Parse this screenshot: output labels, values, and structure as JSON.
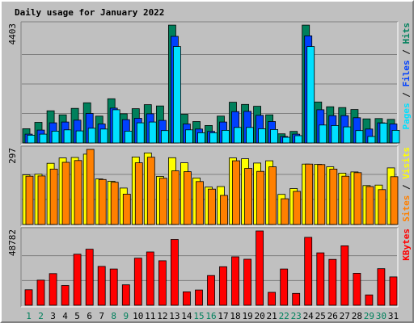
{
  "chart_data": {
    "title": "Daily usage for January 2022",
    "days": [
      "1",
      "2",
      "3",
      "4",
      "5",
      "6",
      "7",
      "8",
      "9",
      "10",
      "11",
      "12",
      "13",
      "14",
      "15",
      "16",
      "17",
      "18",
      "19",
      "20",
      "21",
      "22",
      "23",
      "24",
      "25",
      "26",
      "27",
      "28",
      "29",
      "30",
      "31"
    ],
    "weekend_days": [
      "1",
      "2",
      "8",
      "9",
      "15",
      "16",
      "22",
      "23",
      "29",
      "30"
    ],
    "colors": {
      "hits": "#00805c",
      "files": "#0040ff",
      "pages": "#00e0ff",
      "visits": "#ffff00",
      "sites": "#ff8000",
      "kbytes": "#ff0000",
      "title": "#0000ff",
      "weekday_label": "#000000",
      "weekend_label": "#00805c",
      "background": "#c0c0c0",
      "plot_background": "#c0c0c0"
    },
    "panels": [
      {
        "type": "bar",
        "max_label": "4403",
        "ymax": 4403,
        "legend": [
          {
            "text": "Pages",
            "color": "#00e0ff"
          },
          {
            "text": " / ",
            "color": "#000000"
          },
          {
            "text": "Files",
            "color": "#0040ff"
          },
          {
            "text": " / ",
            "color": "#000000"
          },
          {
            "text": "Hits",
            "color": "#00805c"
          }
        ],
        "series": [
          {
            "name": "Hits",
            "color": "#00805c",
            "values": [
              530,
              770,
              1200,
              1050,
              1290,
              1500,
              1000,
              1650,
              1090,
              1280,
              1430,
              1380,
              4400,
              1070,
              800,
              650,
              1000,
              1520,
              1440,
              1370,
              1050,
              340,
              430,
              4400,
              1530,
              1350,
              1320,
              1250,
              900,
              910,
              880
            ]
          },
          {
            "name": "Files",
            "color": "#0040ff",
            "values": [
              330,
              480,
              750,
              780,
              850,
              1100,
              710,
              1300,
              870,
              920,
              1090,
              840,
              3980,
              710,
              520,
              430,
              780,
              1170,
              1180,
              1030,
              800,
              240,
              330,
              4000,
              1240,
              1020,
              1020,
              940,
              520,
              750,
              710
            ]
          },
          {
            "name": "Pages",
            "color": "#00e0ff",
            "values": [
              290,
              330,
              440,
              490,
              450,
              550,
              520,
              1240,
              440,
              750,
              780,
              460,
              3600,
              490,
              380,
              380,
              470,
              580,
              580,
              530,
              500,
              210,
              270,
              3600,
              670,
              650,
              600,
              460,
              240,
              740,
              470
            ]
          }
        ]
      },
      {
        "type": "bar",
        "max_label": "297",
        "ymax": 297,
        "legend": [
          {
            "text": "Sites",
            "color": "#ff8000"
          },
          {
            "text": " / ",
            "color": "#000000"
          },
          {
            "text": "Visits",
            "color": "#ffff00"
          }
        ],
        "series": [
          {
            "name": "Visits",
            "color": "#ffff00",
            "values": [
              196,
              199,
              242,
              263,
              265,
              278,
              180,
              171,
              144,
              267,
              283,
              190,
              264,
              244,
              184,
              148,
              150,
              263,
              260,
              243,
              252,
              119,
              142,
              239,
              238,
              228,
              203,
              208,
              154,
              156,
              224
            ]
          },
          {
            "name": "Sites",
            "color": "#ff8000",
            "values": [
              191,
              192,
              219,
              246,
              253,
              297,
              178,
              167,
              120,
              244,
              266,
              183,
              212,
              209,
              170,
              140,
              115,
              252,
              222,
              210,
              228,
              102,
              131,
              239,
              237,
              219,
              191,
              205,
              150,
              138,
              189
            ]
          }
        ]
      },
      {
        "type": "bar",
        "max_label": "48782",
        "ymax": 48782,
        "legend": [
          {
            "text": "KBytes",
            "color": "#ff0000"
          }
        ],
        "series": [
          {
            "name": "KBytes",
            "color": "#ff0000",
            "values": [
              10200,
              16500,
              20800,
              13000,
              33500,
              36800,
              25500,
              23800,
              13400,
              30900,
              35000,
              29200,
              43200,
              8800,
              10000,
              19500,
              25300,
              31800,
              30200,
              48782,
              8500,
              23800,
              7800,
              44600,
              34400,
              30100,
              39000,
              21000,
              6800,
              24000,
              18600
            ]
          }
        ]
      }
    ]
  }
}
